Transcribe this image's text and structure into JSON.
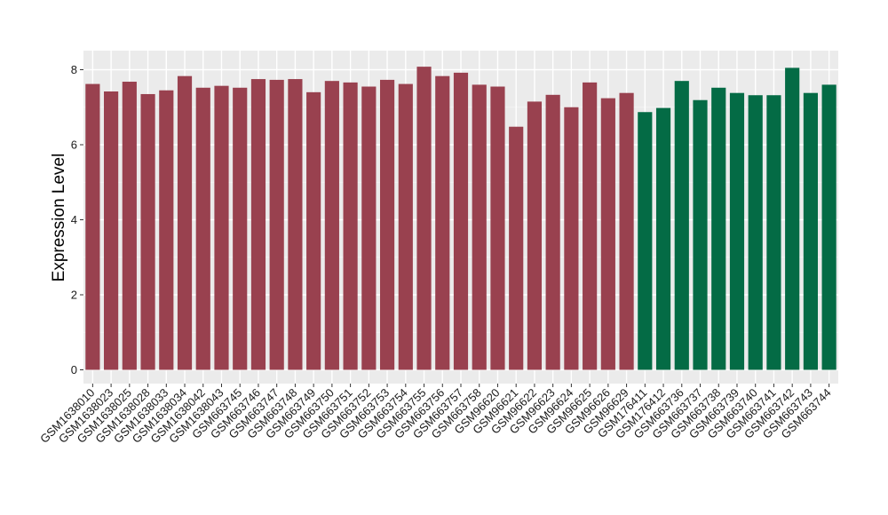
{
  "chart_data": {
    "type": "bar",
    "ylabel": "Expression Level",
    "xlabel": "",
    "ylim": [
      0,
      8.3
    ],
    "yticks": [
      0,
      2,
      4,
      6,
      8
    ],
    "grid": true,
    "background_color": "#EBEBEB",
    "group_colors": [
      "#99414F",
      "#046B45"
    ],
    "categories": [
      "GSM1638010",
      "GSM1638023",
      "GSM1638025",
      "GSM1638028",
      "GSM1638033",
      "GSM1638034",
      "GSM1638042",
      "GSM1638043",
      "GSM663745",
      "GSM663746",
      "GSM663747",
      "GSM663748",
      "GSM663749",
      "GSM663750",
      "GSM663751",
      "GSM663752",
      "GSM663753",
      "GSM663754",
      "GSM663755",
      "GSM663756",
      "GSM663757",
      "GSM663758",
      "GSM96620",
      "GSM96621",
      "GSM96622",
      "GSM96623",
      "GSM96624",
      "GSM96625",
      "GSM96626",
      "GSM96629",
      "GSM176411",
      "GSM176412",
      "GSM663736",
      "GSM663737",
      "GSM663738",
      "GSM663739",
      "GSM663740",
      "GSM663741",
      "GSM663742",
      "GSM663743",
      "GSM663744"
    ],
    "values": [
      7.62,
      7.42,
      7.68,
      7.35,
      7.45,
      7.83,
      7.52,
      7.57,
      7.52,
      7.75,
      7.73,
      7.75,
      7.4,
      7.7,
      7.66,
      7.55,
      7.73,
      7.62,
      8.08,
      7.83,
      7.92,
      7.6,
      7.55,
      6.48,
      7.15,
      7.33,
      7.0,
      7.66,
      7.24,
      7.38,
      6.87,
      6.98,
      7.7,
      7.19,
      7.52,
      7.38,
      7.32,
      7.32,
      8.05,
      7.38,
      7.6
    ],
    "groups": [
      0,
      0,
      0,
      0,
      0,
      0,
      0,
      0,
      0,
      0,
      0,
      0,
      0,
      0,
      0,
      0,
      0,
      0,
      0,
      0,
      0,
      0,
      0,
      0,
      0,
      0,
      0,
      0,
      0,
      0,
      1,
      1,
      1,
      1,
      1,
      1,
      1,
      1,
      1,
      1,
      1
    ]
  }
}
